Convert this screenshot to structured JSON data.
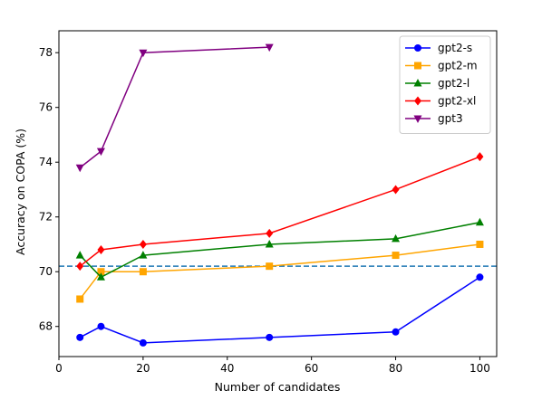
{
  "chart_data": {
    "type": "line",
    "xlabel": "Number of candidates",
    "ylabel": "Accuracy on COPA (%)",
    "xlim": [
      0,
      104
    ],
    "ylim": [
      66.9,
      78.8
    ],
    "xticks": [
      0,
      20,
      40,
      60,
      80,
      100
    ],
    "yticks": [
      68,
      70,
      72,
      74,
      76,
      78
    ],
    "grid": false,
    "legend_position": "top-right",
    "baseline": {
      "y": 70.2,
      "style": "dashed",
      "color": "#1f77b4"
    },
    "series": [
      {
        "name": "gpt2-s",
        "color": "#0000ff",
        "marker": "circle",
        "x": [
          5,
          10,
          20,
          50,
          80,
          100
        ],
        "y": [
          67.6,
          68.0,
          67.4,
          67.6,
          67.8,
          69.8
        ]
      },
      {
        "name": "gpt2-m",
        "color": "#ffa500",
        "marker": "square",
        "x": [
          5,
          10,
          20,
          50,
          80,
          100
        ],
        "y": [
          69.0,
          70.0,
          70.0,
          70.2,
          70.6,
          71.0
        ]
      },
      {
        "name": "gpt2-l",
        "color": "#008000",
        "marker": "triangle-up",
        "x": [
          5,
          10,
          20,
          50,
          80,
          100
        ],
        "y": [
          70.6,
          69.8,
          70.6,
          71.0,
          71.2,
          71.8
        ]
      },
      {
        "name": "gpt2-xl",
        "color": "#ff0000",
        "marker": "diamond",
        "x": [
          5,
          10,
          20,
          50,
          80,
          100
        ],
        "y": [
          70.2,
          70.8,
          71.0,
          71.4,
          73.0,
          74.2
        ]
      },
      {
        "name": "gpt3",
        "color": "#800080",
        "marker": "triangle-down",
        "x": [
          5,
          10,
          20,
          50
        ],
        "y": [
          73.8,
          74.4,
          78.0,
          78.2
        ]
      }
    ]
  }
}
